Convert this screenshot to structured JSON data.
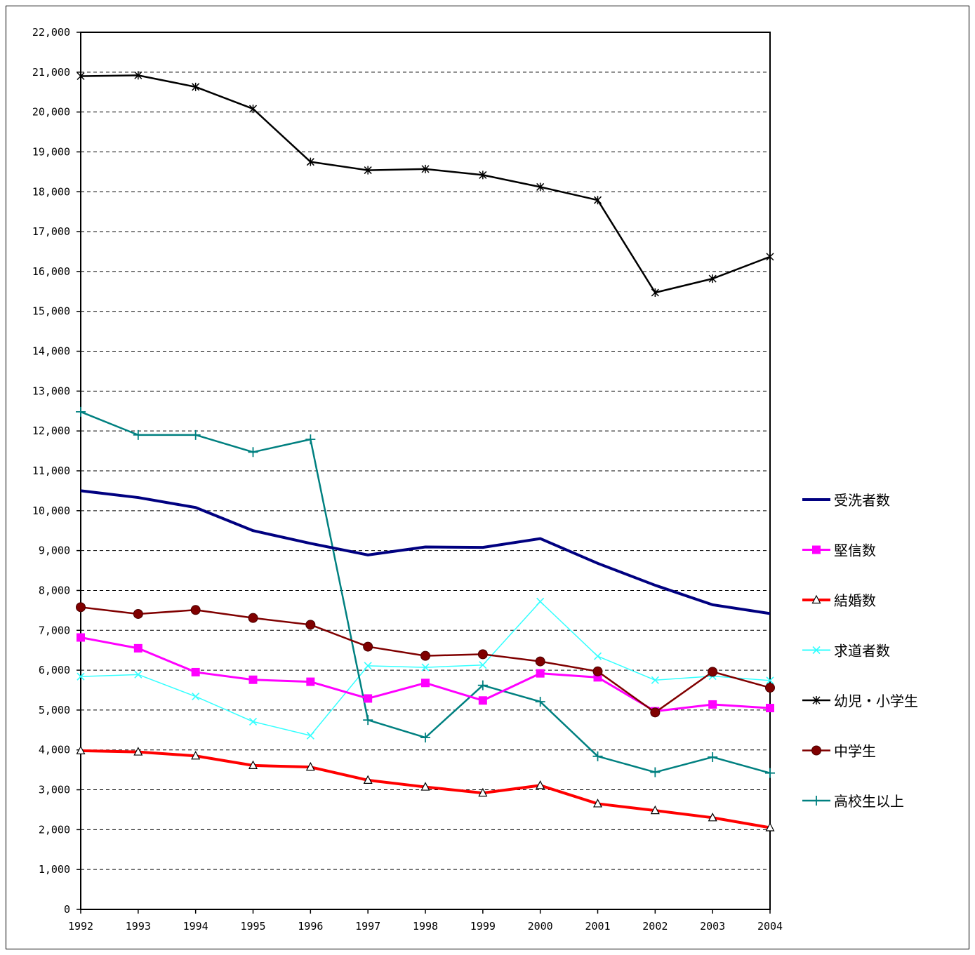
{
  "chart_data": {
    "type": "line",
    "title": "",
    "xlabel": "",
    "ylabel": "",
    "categories": [
      "1992",
      "1993",
      "1994",
      "1995",
      "1996",
      "1997",
      "1998",
      "1999",
      "2000",
      "2001",
      "2002",
      "2003",
      "2004"
    ],
    "ylim": [
      0,
      22000
    ],
    "y_ticks": [
      0,
      1000,
      2000,
      3000,
      4000,
      5000,
      6000,
      7000,
      8000,
      9000,
      10000,
      11000,
      12000,
      13000,
      14000,
      15000,
      16000,
      17000,
      18000,
      19000,
      20000,
      21000,
      22000
    ],
    "y_tick_labels": [
      "0",
      "1,000",
      "2,000",
      "3,000",
      "4,000",
      "5,000",
      "6,000",
      "7,000",
      "8,000",
      "9,000",
      "10,000",
      "11,000",
      "12,000",
      "13,000",
      "14,000",
      "15,000",
      "16,000",
      "17,000",
      "18,000",
      "19,000",
      "20,000",
      "21,000",
      "22,000"
    ],
    "grid": "horizontal dashed",
    "legend_position": "right",
    "series": [
      {
        "name": "受洗者数",
        "color": "#000080",
        "marker": "none",
        "line_width": 4,
        "values": [
          10500,
          10330,
          10080,
          9500,
          9180,
          8890,
          9090,
          9080,
          9300,
          8680,
          8130,
          7640,
          7420
        ]
      },
      {
        "name": "堅信数",
        "color": "#ff00ff",
        "marker": "square",
        "line_width": 3,
        "values": [
          6820,
          6550,
          5950,
          5760,
          5710,
          5290,
          5680,
          5240,
          5920,
          5820,
          4970,
          5140,
          5050
        ]
      },
      {
        "name": "結婚数",
        "color": "#ff0000",
        "marker": "triangle",
        "line_width": 4,
        "values": [
          3980,
          3950,
          3850,
          3610,
          3570,
          3240,
          3070,
          2920,
          3110,
          2650,
          2480,
          2300,
          2050
        ]
      },
      {
        "name": "求道者数",
        "color": "#33ffff",
        "marker": "x",
        "line_width": 1.5,
        "values": [
          5840,
          5890,
          5340,
          4710,
          4360,
          6110,
          6070,
          6130,
          7720,
          6350,
          5750,
          5850,
          5740
        ]
      },
      {
        "name": "幼児・小学生",
        "color": "#000000",
        "marker": "star",
        "line_width": 2.5,
        "values": [
          20900,
          20920,
          20630,
          20080,
          18750,
          18540,
          18570,
          18420,
          18120,
          17790,
          15470,
          15820,
          16370
        ]
      },
      {
        "name": "中学生",
        "color": "#800000",
        "marker": "circle",
        "line_width": 2.5,
        "values": [
          7580,
          7410,
          7510,
          7310,
          7140,
          6590,
          6360,
          6400,
          6220,
          5970,
          4940,
          5960,
          5560
        ]
      },
      {
        "name": "高校生以上",
        "color": "#008080",
        "marker": "plus",
        "line_width": 2.5,
        "values": [
          12480,
          11900,
          11900,
          11470,
          11790,
          4750,
          4310,
          5620,
          5210,
          3840,
          3440,
          3820,
          3420
        ]
      }
    ]
  }
}
